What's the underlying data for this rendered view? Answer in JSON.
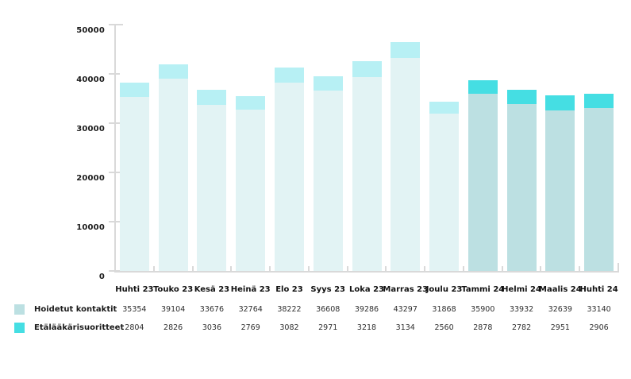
{
  "chart_data": {
    "type": "bar",
    "stacked": true,
    "title": "",
    "categories": [
      "Huhti 23",
      "Touko 23",
      "Kesä 23",
      "Heinä 23",
      "Elo 23",
      "Syys 23",
      "Loka 23",
      "Marras 23",
      "Joulu 23",
      "Tammi 24",
      "Helmi 24",
      "Maalis 24",
      "Huhti 24"
    ],
    "series": [
      {
        "name": "Hoidetut kontaktit",
        "values": [
          35354,
          39104,
          33676,
          32764,
          38222,
          36608,
          39286,
          43297,
          31868,
          35900,
          33932,
          32639,
          33140
        ]
      },
      {
        "name": "Etälääkärisuoritteet",
        "values": [
          2804,
          2826,
          3036,
          2769,
          3082,
          2971,
          3218,
          3134,
          2560,
          2878,
          2782,
          2951,
          2906
        ]
      }
    ],
    "highlighted_categories": [
      "Tammi 24",
      "Helmi 24",
      "Maalis 24",
      "Huhti 24"
    ],
    "ylim": [
      0,
      50000
    ],
    "y_tick_labels": [
      "0",
      "10000",
      "20000",
      "30000",
      "40000",
      "50000"
    ],
    "xlabel": "",
    "ylabel": "",
    "grid": false,
    "legend_position": "bottom-left",
    "colors": {
      "kontaktit_normal": "#e2f3f4",
      "kontaktit_highlight": "#bce0e2",
      "etalaakari_normal": "#b7f0f4",
      "etalaakari_highlight": "#45dee3",
      "axis": "#d9d9d9",
      "label_text": "#111111",
      "value_text": "#2e2e2e"
    }
  },
  "legend": {
    "items": [
      {
        "label": "Hoidetut kontaktit",
        "color": "#bce0e2"
      },
      {
        "label": "Etälääkärisuoritteet",
        "color": "#45dee3"
      }
    ]
  }
}
